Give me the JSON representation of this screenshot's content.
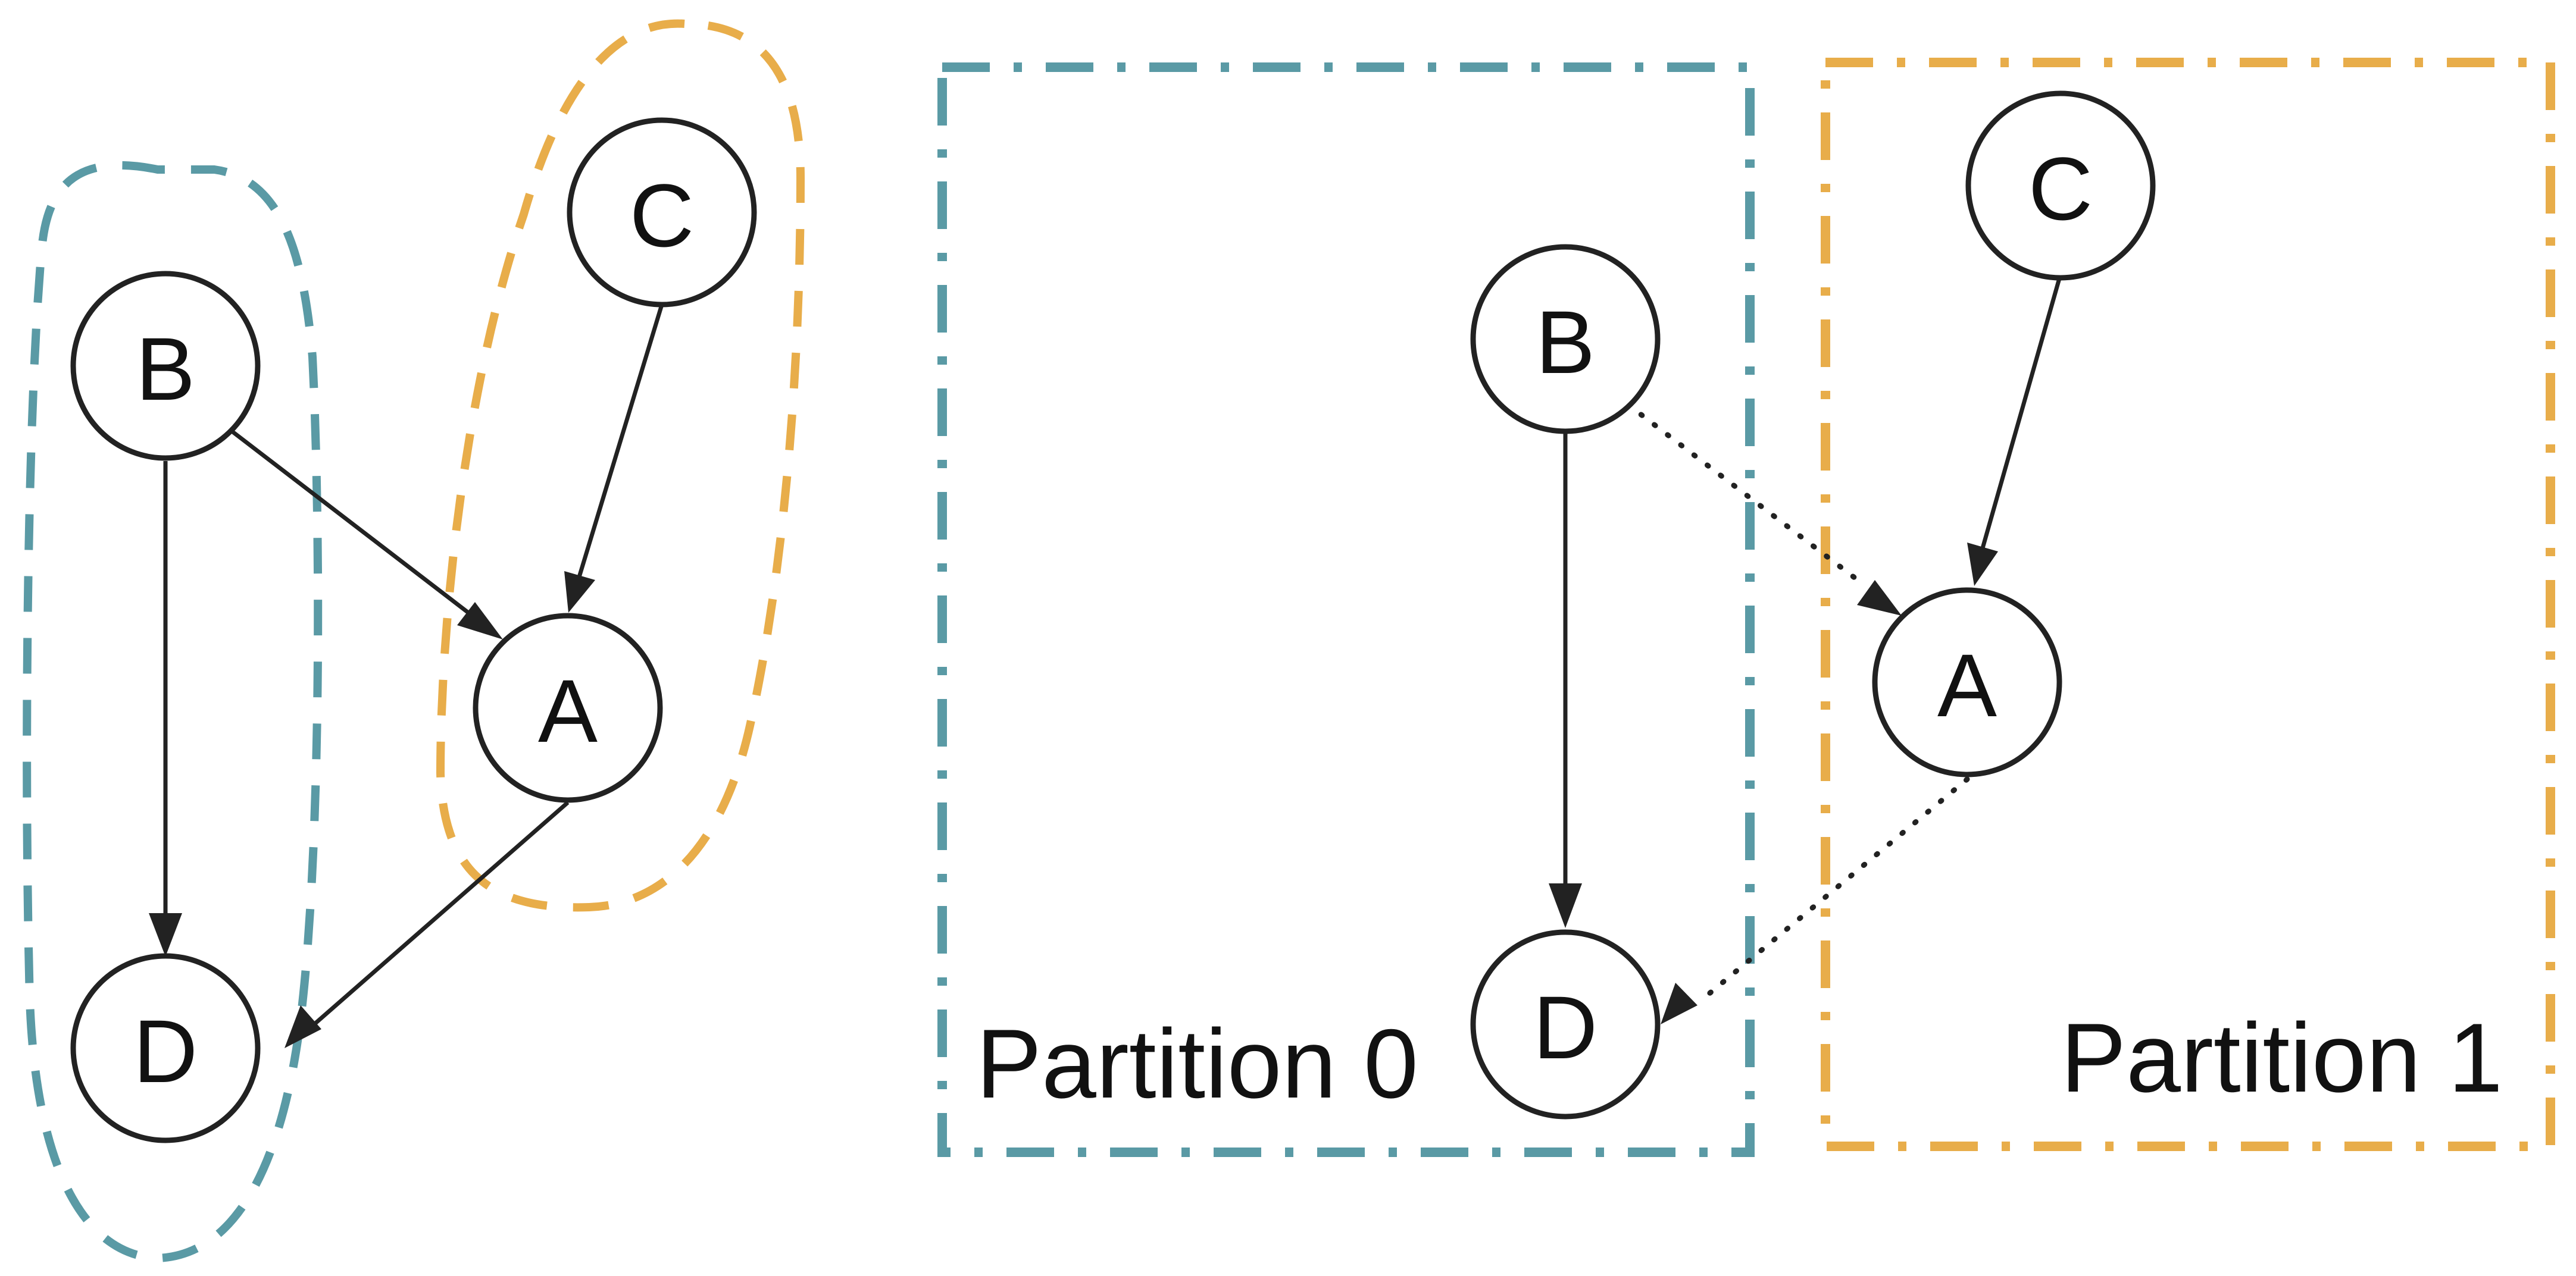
{
  "colors": {
    "partition_0": "#5a9aa5",
    "partition_1": "#e8ad4a",
    "edge": "#222222"
  },
  "left_graph": {
    "nodes": {
      "A": "A",
      "B": "B",
      "C": "C",
      "D": "D"
    },
    "edges": [
      {
        "from": "B",
        "to": "A",
        "style": "solid"
      },
      {
        "from": "C",
        "to": "A",
        "style": "solid"
      },
      {
        "from": "B",
        "to": "D",
        "style": "solid"
      },
      {
        "from": "A",
        "to": "D",
        "style": "solid"
      }
    ],
    "groups": [
      {
        "members": [
          "B",
          "D"
        ],
        "color": "#5a9aa5"
      },
      {
        "members": [
          "C",
          "A"
        ],
        "color": "#e8ad4a"
      }
    ]
  },
  "right_graph": {
    "partitions": [
      {
        "label": "Partition 0",
        "members": [
          "B",
          "D"
        ],
        "color": "#5a9aa5"
      },
      {
        "label": "Partition 1",
        "members": [
          "C",
          "A"
        ],
        "color": "#e8ad4a"
      }
    ],
    "nodes": {
      "A": "A",
      "B": "B",
      "C": "C",
      "D": "D"
    },
    "edges": [
      {
        "from": "B",
        "to": "D",
        "style": "solid"
      },
      {
        "from": "C",
        "to": "A",
        "style": "solid"
      },
      {
        "from": "B",
        "to": "A",
        "style": "dotted"
      },
      {
        "from": "A",
        "to": "D",
        "style": "dotted"
      }
    ]
  }
}
